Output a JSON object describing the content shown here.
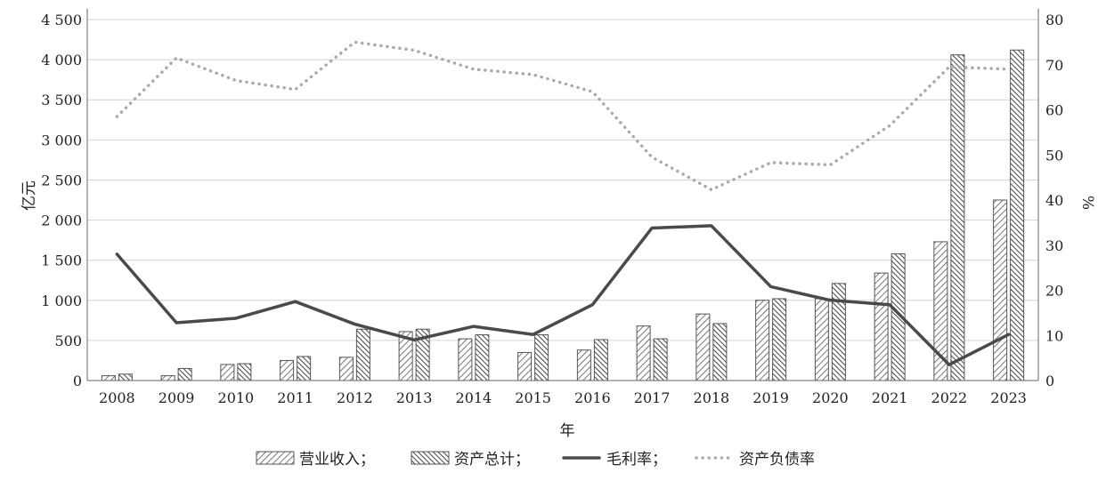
{
  "chart_data": {
    "type": "bar",
    "categories": [
      "2008",
      "2009",
      "2010",
      "2011",
      "2012",
      "2013",
      "2014",
      "2015",
      "2016",
      "2017",
      "2018",
      "2019",
      "2020",
      "2021",
      "2022",
      "2023"
    ],
    "xlabel": "年",
    "ylabel": "亿元",
    "y2label": "%",
    "ylim": [
      0,
      4500
    ],
    "y2lim": [
      0,
      80
    ],
    "yticks": [
      "0",
      "500",
      "1 000",
      "1 500",
      "2 000",
      "2 500",
      "3 000",
      "3 500",
      "4 000",
      "4 500"
    ],
    "y2ticks": [
      "0",
      "10",
      "20",
      "30",
      "40",
      "50",
      "60",
      "70",
      "80"
    ],
    "grid": true,
    "legend_position": "bottom",
    "series": [
      {
        "name": "营业收入；",
        "kind": "bar",
        "pattern": "diag-light",
        "axis": "left",
        "values": [
          60,
          60,
          200,
          250,
          290,
          610,
          520,
          350,
          380,
          680,
          830,
          1000,
          1020,
          1340,
          1730,
          2250
        ]
      },
      {
        "name": "资产总计；",
        "kind": "bar",
        "pattern": "diag-dense",
        "axis": "left",
        "values": [
          80,
          150,
          210,
          300,
          640,
          640,
          570,
          570,
          510,
          520,
          710,
          1020,
          1210,
          1580,
          4060,
          4120
        ]
      },
      {
        "name": "毛利率；",
        "kind": "line",
        "style": "solid",
        "color": "#4a4a4a",
        "axis": "right",
        "values": [
          28.0,
          12.8,
          13.8,
          17.5,
          12.5,
          9.0,
          12.0,
          10.2,
          16.8,
          33.8,
          34.3,
          20.8,
          17.8,
          16.8,
          3.5,
          10.2
        ]
      },
      {
        "name": "资产负债率",
        "kind": "line",
        "style": "dotted",
        "color": "#aaaaaa",
        "axis": "right",
        "values": [
          58.5,
          71.5,
          66.5,
          64.5,
          75.0,
          73.2,
          69.0,
          67.8,
          64.0,
          49.5,
          42.3,
          48.3,
          47.8,
          56.5,
          69.5,
          69.0
        ]
      }
    ]
  }
}
